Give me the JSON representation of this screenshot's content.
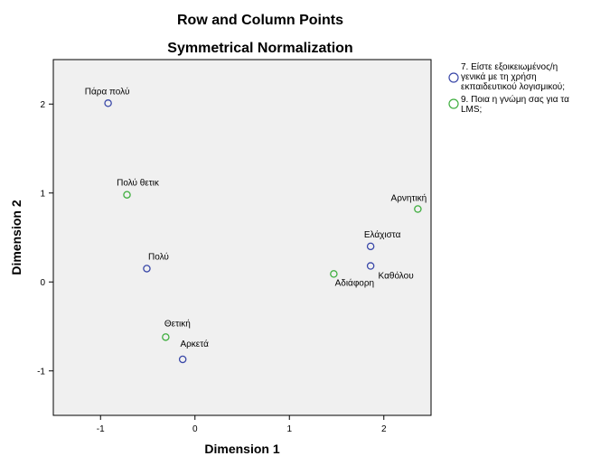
{
  "chart_data": {
    "type": "scatter",
    "title": "Row and Column Points",
    "subtitle": "Symmetrical Normalization",
    "xlabel": "Dimension 1",
    "ylabel": "Dimension 2",
    "xlim": [
      -1.5,
      2.5
    ],
    "ylim": [
      -1.5,
      2.5
    ],
    "xticks": [
      -1,
      0,
      1,
      2
    ],
    "yticks": [
      -1,
      0,
      1,
      2
    ],
    "grid": false,
    "legend_position": "right",
    "series": [
      {
        "name": "7. Είστε εξοικειωμένος/η γενικά με τη χρήση εκπαιδευτικού λογισμικού;",
        "color": "#3a48a8",
        "points": [
          {
            "label": "Πάρα πολύ",
            "x": -0.92,
            "y": 2.01
          },
          {
            "label": "Πολύ",
            "x": -0.51,
            "y": 0.15
          },
          {
            "label": "Αρκετά",
            "x": -0.13,
            "y": -0.87
          },
          {
            "label": "Ελάχιστα",
            "x": 1.86,
            "y": 0.4
          },
          {
            "label": "Καθόλου",
            "x": 1.86,
            "y": 0.18
          }
        ]
      },
      {
        "name": "9. Ποια η γνώμη σας για τα LMS;",
        "color": "#3fae3f",
        "points": [
          {
            "label": "Πολύ θετικ",
            "x": -0.72,
            "y": 0.98
          },
          {
            "label": "Θετική",
            "x": -0.31,
            "y": -0.62
          },
          {
            "label": "Αδιάφορη",
            "x": 1.47,
            "y": 0.09
          },
          {
            "label": "Αρνητική",
            "x": 2.36,
            "y": 0.82
          }
        ]
      }
    ]
  },
  "legend": {
    "item1": [
      "7. Είστε εξοικειωμένος/η",
      "γενικά με τη χρήση",
      "εκπαιδευτικού λογισμικού;"
    ],
    "item2": [
      "9. Ποια η γνώμη σας για τα",
      "LMS;"
    ]
  }
}
